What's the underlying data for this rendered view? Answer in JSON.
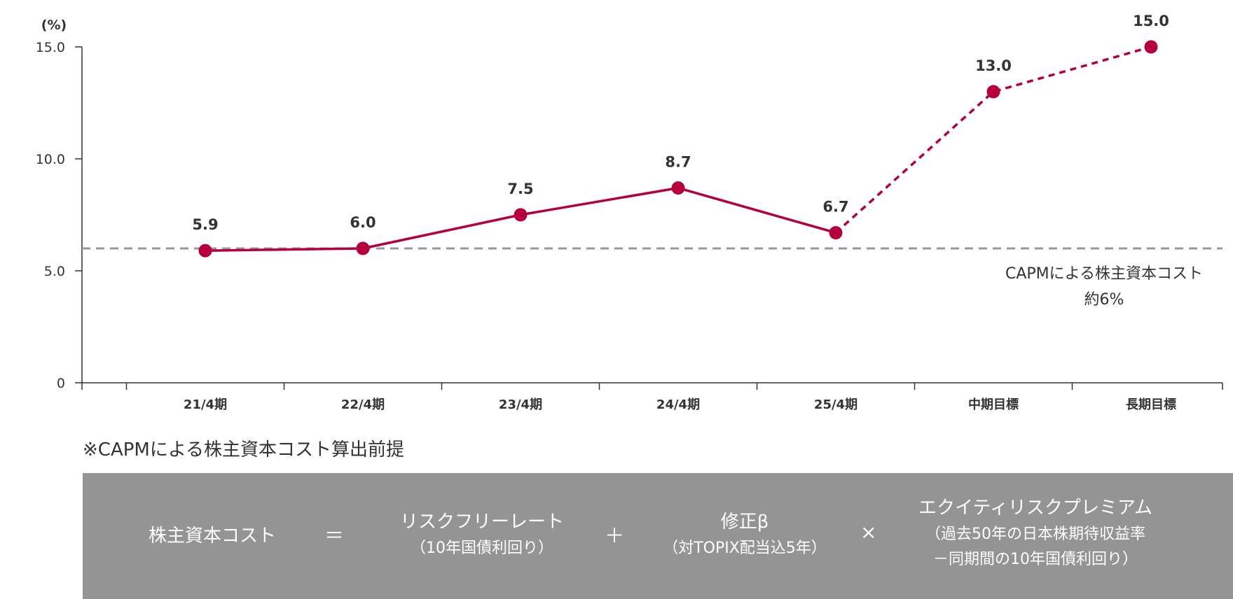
{
  "chart_data": {
    "type": "line",
    "unit_label": "(%)",
    "categories": [
      "21/4期",
      "22/4期",
      "23/4期",
      "24/4期",
      "25/4期",
      "中期目標",
      "長期目標"
    ],
    "series": [
      {
        "values": [
          5.9,
          6.0,
          7.5,
          8.7,
          6.7,
          13.0,
          15.0
        ],
        "labels": [
          "5.9",
          "6.0",
          "7.5",
          "8.7",
          "6.7",
          "13.0",
          "15.0"
        ],
        "actual_count": 5,
        "color": "#b5003c"
      }
    ],
    "yticks": [
      "0",
      "5.0",
      "10.0",
      "15.0"
    ],
    "ytick_values": [
      0,
      5,
      10,
      15
    ],
    "ylim": [
      0,
      15
    ],
    "grid": false,
    "reference_line": {
      "value": 6.0,
      "color": "#999999",
      "label_lines": [
        "CAPMによる株主資本コスト",
        "約6%"
      ]
    }
  },
  "note": "※CAPMによる株主資本コスト算出前提",
  "formula": {
    "term1": "株主資本コスト",
    "op1": "＝",
    "term2": "リスクフリーレート",
    "term2_sub": "（10年国債利回り）",
    "op2": "＋",
    "term3": "修正β",
    "term3_sub": "（対TOPIX配当込5年）",
    "op3": "×",
    "term4": "エクイティリスクプレミアム",
    "term4_sub1": "（過去50年の日本株期待収益率",
    "term4_sub2": "－同期間の10年国債利回り）"
  }
}
